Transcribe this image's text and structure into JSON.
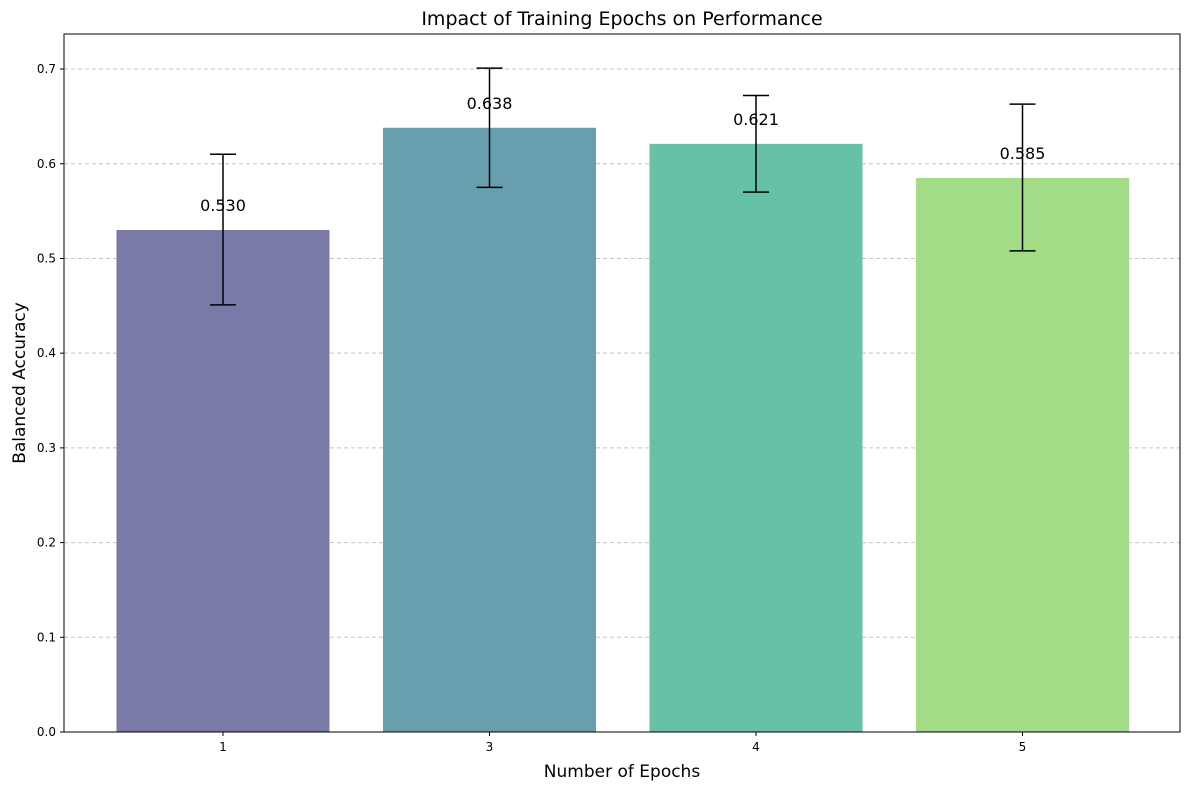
{
  "chart_data": {
    "type": "bar",
    "title": "Impact of Training Epochs on Performance",
    "xlabel": "Number of Epochs",
    "ylabel": "Balanced Accuracy",
    "categories": [
      "1",
      "3",
      "4",
      "5"
    ],
    "values": [
      0.53,
      0.638,
      0.621,
      0.585
    ],
    "error_low": [
      0.451,
      0.575,
      0.57,
      0.508
    ],
    "error_high": [
      0.61,
      0.701,
      0.672,
      0.663
    ],
    "value_labels": [
      "0.530",
      "0.638",
      "0.621",
      "0.585"
    ],
    "bar_colors": [
      "#7a7aa8",
      "#679fae",
      "#66c1a6",
      "#a2dc86"
    ],
    "ylim": [
      0,
      0.737
    ],
    "yticks": [
      0.0,
      0.1,
      0.2,
      0.3,
      0.4,
      0.5,
      0.6,
      0.7
    ],
    "ytick_labels": [
      "0.0",
      "0.1",
      "0.2",
      "0.3",
      "0.4",
      "0.5",
      "0.6",
      "0.7"
    ],
    "grid": "y-dashed",
    "legend": "none"
  }
}
